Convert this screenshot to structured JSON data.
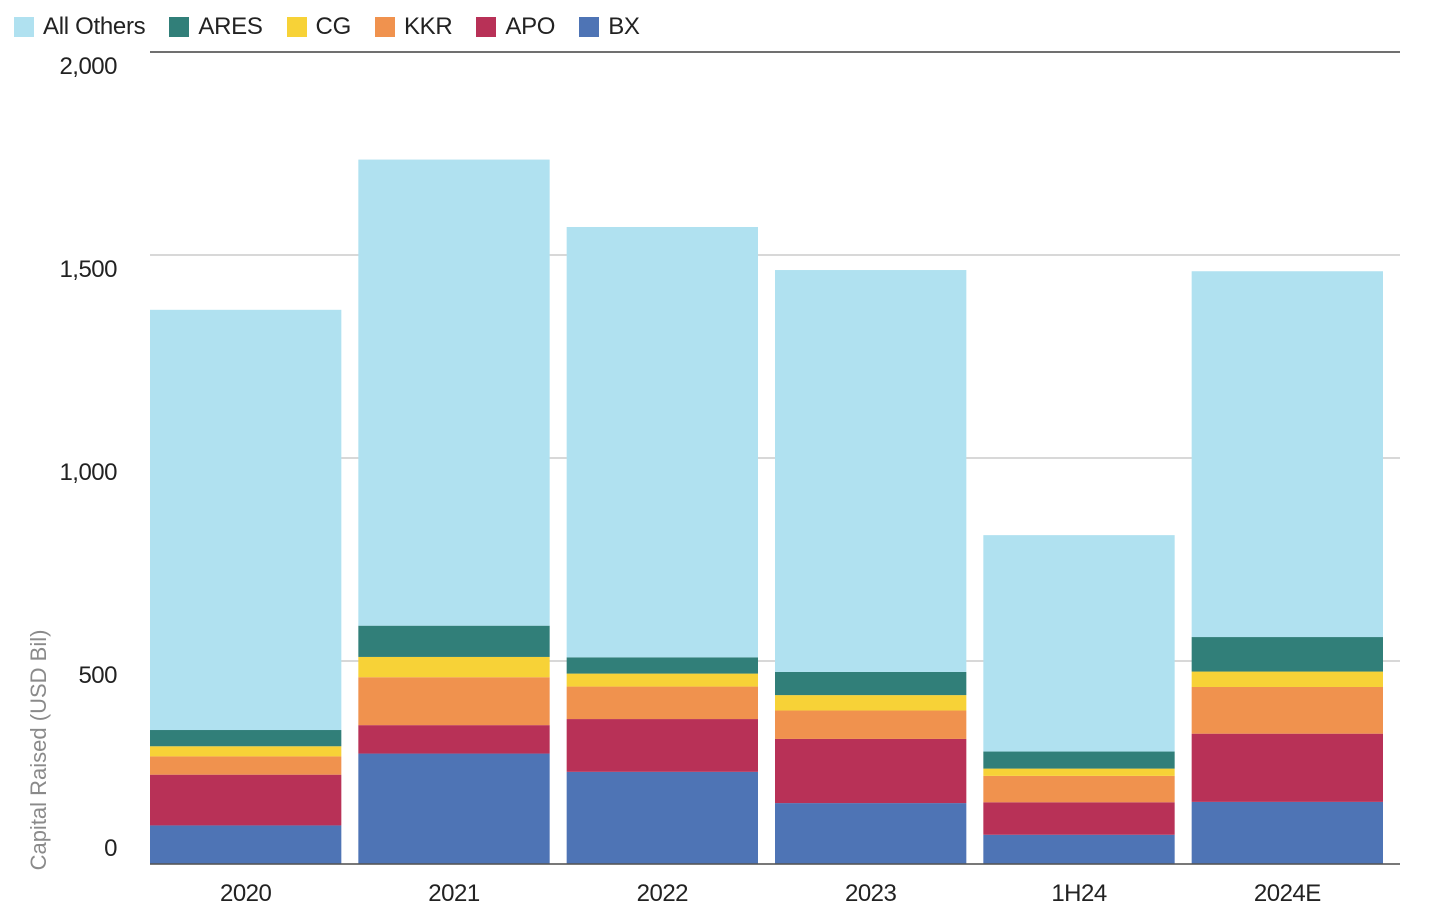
{
  "chart_data": {
    "type": "bar",
    "stacked": true,
    "title": "",
    "xlabel": "",
    "ylabel": "Capital Raised (USD Bil)",
    "ylim": [
      0,
      2000
    ],
    "yticks": [
      0,
      500,
      1000,
      1500,
      2000
    ],
    "ytick_labels": [
      "0",
      "500",
      "1,000",
      "1,500",
      "2,000"
    ],
    "grid": true,
    "legend_position": "top-left",
    "categories": [
      "2020",
      "2021",
      "2022",
      "2023",
      "1H24",
      "2024E"
    ],
    "series": [
      {
        "name": "BX",
        "color": "#4E74B5",
        "values": [
          95,
          272,
          227,
          150,
          72,
          153
        ]
      },
      {
        "name": "APO",
        "color": "#B83157",
        "values": [
          125,
          70,
          130,
          158,
          80,
          168
        ]
      },
      {
        "name": "KKR",
        "color": "#F0924E",
        "values": [
          45,
          118,
          80,
          70,
          65,
          115
        ]
      },
      {
        "name": "CG",
        "color": "#F7D237",
        "values": [
          25,
          50,
          32,
          38,
          18,
          38
        ]
      },
      {
        "name": "ARES",
        "color": "#317F79",
        "values": [
          40,
          77,
          40,
          57,
          42,
          85
        ]
      },
      {
        "name": "All Others",
        "color": "#B0E1F0",
        "values": [
          1035,
          1148,
          1060,
          990,
          533,
          901
        ]
      }
    ],
    "legend_order": [
      "All Others",
      "ARES",
      "CG",
      "KKR",
      "APO",
      "BX"
    ]
  }
}
